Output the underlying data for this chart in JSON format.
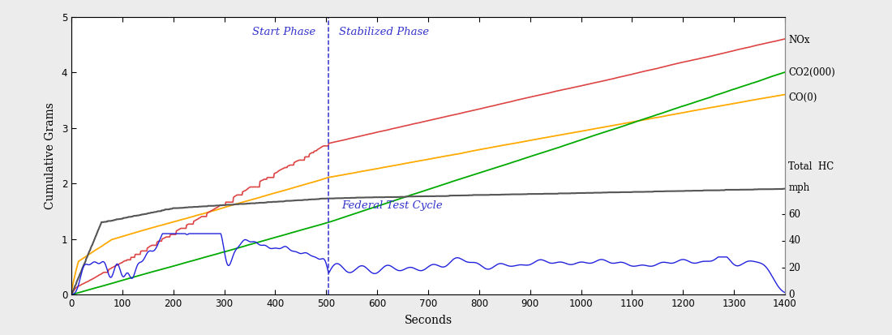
{
  "title": "",
  "xlabel": "Seconds",
  "ylabel": "Cumulative Grams",
  "xlim": [
    0,
    1400
  ],
  "ylim": [
    0,
    5
  ],
  "left_yticks": [
    0,
    1,
    2,
    3,
    4,
    5
  ],
  "xticks": [
    0,
    100,
    200,
    300,
    400,
    500,
    600,
    700,
    800,
    900,
    1000,
    1100,
    1200,
    1300,
    1400
  ],
  "phase_line_x": 505,
  "start_phase_label": "Start Phase",
  "stabilized_phase_label": "Stabilized Phase",
  "federal_test_cycle_label": "Federal Test Cycle",
  "annotation_color": "#3333cc",
  "line_colors": {
    "nox": "#dd4444",
    "co2": "#ffaa00",
    "co": "#00aa00",
    "hc": "#555555",
    "speed": "#2222dd"
  },
  "background_color": "#ffffff",
  "figure_bg": "#ececec",
  "right_axis_labels": [
    [
      4.58,
      "NOx"
    ],
    [
      4.0,
      "CO2(000)"
    ],
    [
      3.55,
      "CO(0)"
    ],
    [
      2.3,
      "Total  HC"
    ],
    [
      1.92,
      "mph"
    ],
    [
      1.45,
      "60"
    ],
    [
      0.97,
      "40"
    ],
    [
      0.485,
      "20"
    ],
    [
      0.0,
      "0"
    ]
  ]
}
